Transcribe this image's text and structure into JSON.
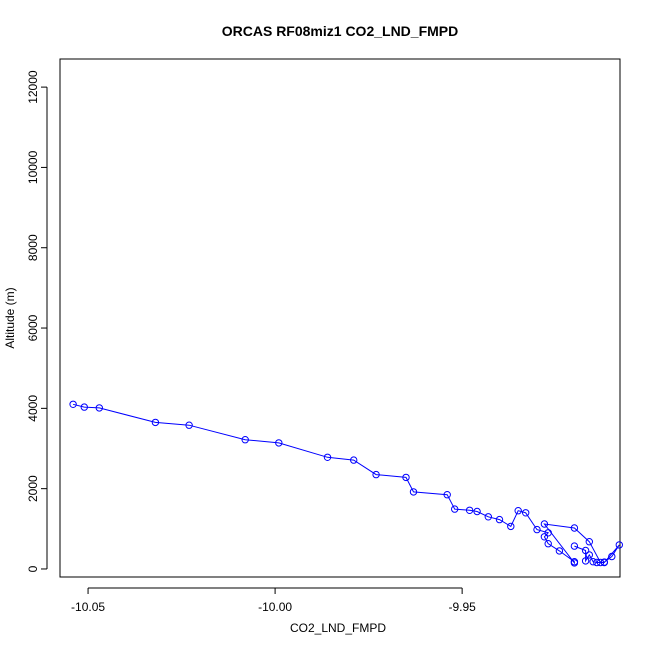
{
  "chart_data": {
    "type": "scatter",
    "title": "ORCAS RF08miz1 CO2_LND_FMPD",
    "xlabel": "CO2_LND_FMPD",
    "ylabel": "Altitude (m)",
    "xlim": [
      -10.0575,
      -9.9078
    ],
    "ylim": [
      -200,
      12700
    ],
    "xticks": [
      -10.05,
      -10.0,
      -9.95
    ],
    "xtick_labels": [
      "-10.05",
      "-10.00",
      "-9.95"
    ],
    "yticks": [
      0,
      2000,
      4000,
      6000,
      8000,
      10000,
      12000
    ],
    "ytick_labels": [
      "0",
      "2000",
      "4000",
      "6000",
      "8000",
      "10000",
      "12000"
    ],
    "grid": false,
    "connect_points": true,
    "series": [
      {
        "color": "#0000ff",
        "points": [
          [
            -10.054,
            4100
          ],
          [
            -10.051,
            4030
          ],
          [
            -10.047,
            4010
          ],
          [
            -10.032,
            3650
          ],
          [
            -10.023,
            3580
          ],
          [
            -10.008,
            3220
          ],
          [
            -9.999,
            3140
          ],
          [
            -9.986,
            2780
          ],
          [
            -9.979,
            2710
          ],
          [
            -9.973,
            2350
          ],
          [
            -9.965,
            2280
          ],
          [
            -9.963,
            1920
          ],
          [
            -9.954,
            1850
          ],
          [
            -9.952,
            1490
          ],
          [
            -9.948,
            1460
          ],
          [
            -9.946,
            1430
          ],
          [
            -9.943,
            1300
          ],
          [
            -9.94,
            1230
          ],
          [
            -9.937,
            1060
          ],
          [
            -9.935,
            1450
          ],
          [
            -9.933,
            1400
          ],
          [
            -9.93,
            980
          ],
          [
            -9.927,
            900
          ],
          [
            -9.928,
            800
          ],
          [
            -9.927,
            630
          ],
          [
            -9.924,
            450
          ],
          [
            -9.92,
            180
          ],
          [
            -9.92,
            150
          ],
          [
            -9.928,
            1120
          ],
          [
            -9.92,
            1020
          ],
          [
            -9.916,
            680
          ],
          [
            -9.913,
            160
          ],
          [
            -9.912,
            170
          ],
          [
            -9.91,
            310
          ],
          [
            -9.908,
            600
          ],
          [
            -9.912,
            160
          ],
          [
            -9.914,
            160
          ],
          [
            -9.915,
            180
          ],
          [
            -9.916,
            350
          ],
          [
            -9.917,
            200
          ],
          [
            -9.917,
            460
          ],
          [
            -9.92,
            570
          ]
        ]
      }
    ]
  }
}
